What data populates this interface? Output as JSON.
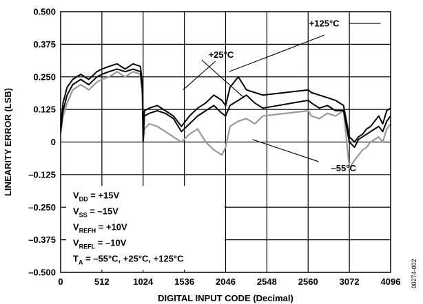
{
  "chart_data": {
    "type": "line",
    "xlabel": "DIGITAL INPUT CODE (Decimal)",
    "ylabel": "LINEARITY ERROR (LSB)",
    "xlim": [
      0,
      4096
    ],
    "ylim": [
      -0.5,
      0.5
    ],
    "x_ticks": [
      0,
      512,
      1024,
      1536,
      2046,
      2548,
      2560,
      3072,
      4096
    ],
    "x_tick_labels": [
      "0",
      "512",
      "1024",
      "1536",
      "2046",
      "2548",
      "2560",
      "3072",
      "4096"
    ],
    "y_ticks": [
      0.5,
      0.375,
      0.25,
      0.125,
      0,
      -0.125,
      -0.25,
      -0.375,
      -0.5
    ],
    "y_tick_labels": [
      "0.500",
      "0.375",
      "0.250",
      "0.125",
      "0",
      "–0.125",
      "–0.250",
      "–0.375",
      "–0.500"
    ],
    "grid": true,
    "series": [
      {
        "name": "+125°C",
        "color": "#000000",
        "x": [
          0,
          30,
          80,
          150,
          250,
          350,
          450,
          512,
          600,
          700,
          800,
          900,
          990,
          1015,
          1024,
          1040,
          1100,
          1200,
          1300,
          1400,
          1500,
          1600,
          1700,
          1800,
          1900,
          2000,
          2046,
          2100,
          2200,
          2300,
          2400,
          2500,
          2560,
          2600,
          2700,
          2800,
          2900,
          3000,
          3072,
          3200,
          3300,
          3400,
          3500,
          3600,
          3700,
          3800,
          3900,
          4000,
          4096
        ],
        "y": [
          0.06,
          0.15,
          0.21,
          0.24,
          0.26,
          0.24,
          0.27,
          0.28,
          0.29,
          0.3,
          0.28,
          0.3,
          0.29,
          0.22,
          0.02,
          0.12,
          0.13,
          0.14,
          0.12,
          0.1,
          0.06,
          0.1,
          0.13,
          0.15,
          0.18,
          0.16,
          0.14,
          0.21,
          0.25,
          0.2,
          0.19,
          0.18,
          0.2,
          0.19,
          0.18,
          0.17,
          0.16,
          0.14,
          0.02,
          0.0,
          0.02,
          0.03,
          0.05,
          0.06,
          0.08,
          0.1,
          0.07,
          0.12,
          0.13
        ]
      },
      {
        "name": "+25°C",
        "color": "#000000",
        "x": [
          0,
          30,
          80,
          150,
          250,
          350,
          450,
          512,
          600,
          700,
          800,
          900,
          990,
          1015,
          1024,
          1040,
          1100,
          1200,
          1300,
          1400,
          1500,
          1600,
          1700,
          1800,
          1900,
          2000,
          2046,
          2100,
          2200,
          2300,
          2400,
          2500,
          2560,
          2600,
          2700,
          2800,
          2900,
          3000,
          3072,
          3200,
          3300,
          3400,
          3500,
          3600,
          3700,
          3800,
          3900,
          4000,
          4096
        ],
        "y": [
          0.04,
          0.12,
          0.18,
          0.22,
          0.24,
          0.22,
          0.25,
          0.26,
          0.27,
          0.28,
          0.27,
          0.28,
          0.27,
          0.2,
          0.0,
          0.1,
          0.11,
          0.12,
          0.11,
          0.09,
          0.04,
          0.07,
          0.1,
          0.12,
          0.14,
          0.11,
          0.1,
          0.14,
          0.16,
          0.18,
          0.15,
          0.13,
          0.16,
          0.15,
          0.13,
          0.14,
          0.12,
          0.12,
          0.0,
          -0.02,
          0.01,
          0.02,
          0.03,
          0.04,
          0.05,
          0.06,
          0.04,
          0.08,
          0.1
        ]
      },
      {
        "name": "–55°C",
        "color": "#999999",
        "x": [
          0,
          30,
          80,
          150,
          250,
          350,
          450,
          512,
          600,
          700,
          800,
          900,
          990,
          1015,
          1024,
          1040,
          1100,
          1200,
          1300,
          1400,
          1500,
          1600,
          1700,
          1800,
          1900,
          2000,
          2046,
          2100,
          2200,
          2300,
          2400,
          2500,
          2560,
          2600,
          2700,
          2800,
          2900,
          3000,
          3072,
          3200,
          3300,
          3400,
          3500,
          3600,
          3700,
          3800,
          3900,
          4000,
          4096
        ],
        "y": [
          0.03,
          0.1,
          0.15,
          0.2,
          0.22,
          0.2,
          0.23,
          0.24,
          0.25,
          0.27,
          0.25,
          0.27,
          0.26,
          0.18,
          0.0,
          0.05,
          0.07,
          0.06,
          0.04,
          0.02,
          0.0,
          0.03,
          0.05,
          0.0,
          -0.03,
          -0.05,
          -0.02,
          0.06,
          0.08,
          0.09,
          0.07,
          0.1,
          0.12,
          0.1,
          0.09,
          0.11,
          0.1,
          0.12,
          -0.1,
          -0.07,
          -0.05,
          -0.03,
          -0.02,
          0.0,
          0.01,
          0.02,
          0.0,
          0.05,
          0.07
        ]
      }
    ],
    "annotations": [
      {
        "text": "+125°C",
        "x": 2760,
        "y": 0.455
      },
      {
        "text": "+25°C",
        "x": 1990,
        "y": 0.335
      },
      {
        "text": "–55°C",
        "x": 3000,
        "y": -0.1
      }
    ],
    "annotation_leaders": [
      {
        "from": [
          3080,
          0.455
        ],
        "to": [
          3850,
          0.455
        ]
      },
      {
        "from": [
          2760,
          0.41
        ],
        "to": [
          2090,
          0.27
        ]
      },
      {
        "from": [
          1920,
          0.31
        ],
        "to": [
          1520,
          0.2
        ]
      },
      {
        "from": [
          1750,
          0.315
        ],
        "to": [
          2270,
          0.17
        ]
      },
      {
        "from": [
          2690,
          -0.075
        ],
        "to": [
          2370,
          0.01
        ]
      }
    ],
    "conditions": [
      {
        "main": "V",
        "sub": "DD",
        "rest": " = +15V"
      },
      {
        "main": "V",
        "sub": "SS",
        "rest": " = –15V"
      },
      {
        "main": "V",
        "sub": "REFH",
        "rest": " = +10V"
      },
      {
        "main": "V",
        "sub": "REFL",
        "rest": " = –10V"
      },
      {
        "main": "T",
        "sub": "A",
        "rest": " = –55°C, +25°C, +125°C"
      }
    ],
    "figure_id": "00274-002"
  }
}
